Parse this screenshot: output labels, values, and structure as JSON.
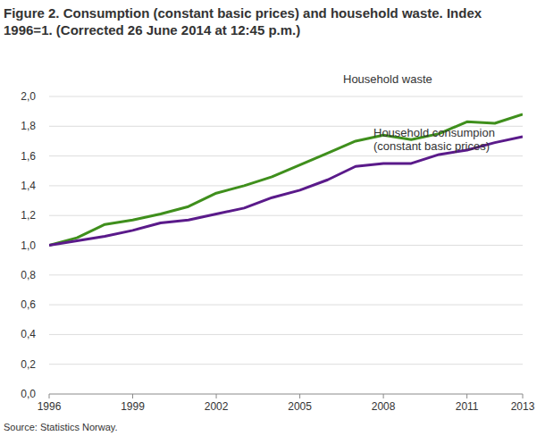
{
  "chart_data": {
    "type": "line",
    "title": "Figure 2. Consumption (constant basic prices) and household waste. Index 1996=1. (Corrected 26 June 2014 at 12:45 p.m.)",
    "source": "Source: Statistics Norway.",
    "x": [
      1996,
      1997,
      1998,
      1999,
      2000,
      2001,
      2002,
      2003,
      2004,
      2005,
      2006,
      2007,
      2008,
      2009,
      2010,
      2011,
      2012,
      2013
    ],
    "series": [
      {
        "name": "Household waste",
        "color": "#3f8f1c",
        "values": [
          1.0,
          1.05,
          1.14,
          1.17,
          1.21,
          1.26,
          1.35,
          1.4,
          1.46,
          1.54,
          1.62,
          1.7,
          1.74,
          1.71,
          1.75,
          1.83,
          1.82,
          1.88
        ]
      },
      {
        "name": "Household consumpion (constant basic prices)",
        "color": "#5a1a8a",
        "values": [
          1.0,
          1.03,
          1.06,
          1.1,
          1.15,
          1.17,
          1.21,
          1.25,
          1.32,
          1.37,
          1.44,
          1.53,
          1.55,
          1.55,
          1.61,
          1.64,
          1.69,
          1.73
        ]
      }
    ],
    "xlim": [
      1996,
      2013
    ],
    "xticks": [
      1996,
      1999,
      2002,
      2005,
      2008,
      2011,
      2013
    ],
    "ylim": [
      0,
      2
    ],
    "yticks": [
      {
        "value": 0,
        "label": "0,0"
      },
      {
        "value": 0.2,
        "label": "0,2"
      },
      {
        "value": 0.4,
        "label": "0,4"
      },
      {
        "value": 0.6,
        "label": "0,6"
      },
      {
        "value": 0.8,
        "label": "0,8"
      },
      {
        "value": 1,
        "label": "1,0"
      },
      {
        "value": 1.2,
        "label": "1,2"
      },
      {
        "value": 1.4,
        "label": "1,4"
      },
      {
        "value": 1.6,
        "label": "1,6"
      },
      {
        "value": 1.8,
        "label": "1,8"
      },
      {
        "value": 2,
        "label": "2,0"
      }
    ],
    "grid": true
  }
}
